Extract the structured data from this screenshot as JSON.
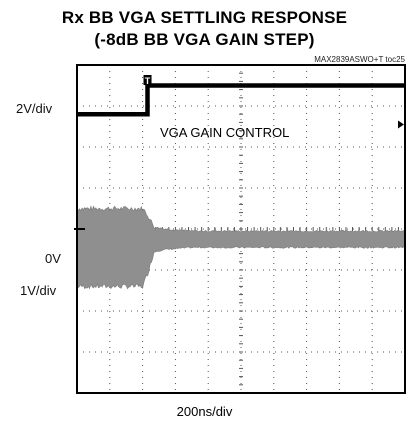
{
  "chart_data": {
    "type": "line",
    "title": "Rx BB VGA SETTLING RESPONSE",
    "subtitle": "(-8dB BB VGA GAIN STEP)",
    "figure_ref": "MAX2839ASWO+T toc25",
    "xlabel": "200ns/div",
    "y_labels": {
      "top_scale": "2V/div",
      "zero_ref": "0V",
      "bottom_scale": "1V/div"
    },
    "annotation": "VGA GAIN CONTROL",
    "trigger_marker": "T",
    "grid": true,
    "divisions": {
      "x": 10,
      "y": 8
    },
    "x_range_div": [
      0,
      10
    ],
    "y_range_div": [
      0,
      8
    ],
    "series": [
      {
        "name": "VGA GAIN CONTROL",
        "x": [
          0,
          2.15,
          2.15,
          10
        ],
        "y": [
          6.8,
          6.8,
          7.5,
          7.5
        ]
      },
      {
        "envelope_x": [
          0,
          2.0,
          2.15,
          2.35,
          2.7,
          3.5,
          6.0,
          10
        ],
        "envelope_upper": [
          4.5,
          4.5,
          4.35,
          4.05,
          4.0,
          3.95,
          3.95,
          3.95
        ],
        "envelope_lower": [
          2.6,
          2.6,
          2.9,
          3.45,
          3.5,
          3.55,
          3.55,
          3.55
        ]
      }
    ],
    "colors": {
      "trace": "#000000",
      "envelope": "#8f8f8f",
      "grid": "#555555"
    }
  }
}
